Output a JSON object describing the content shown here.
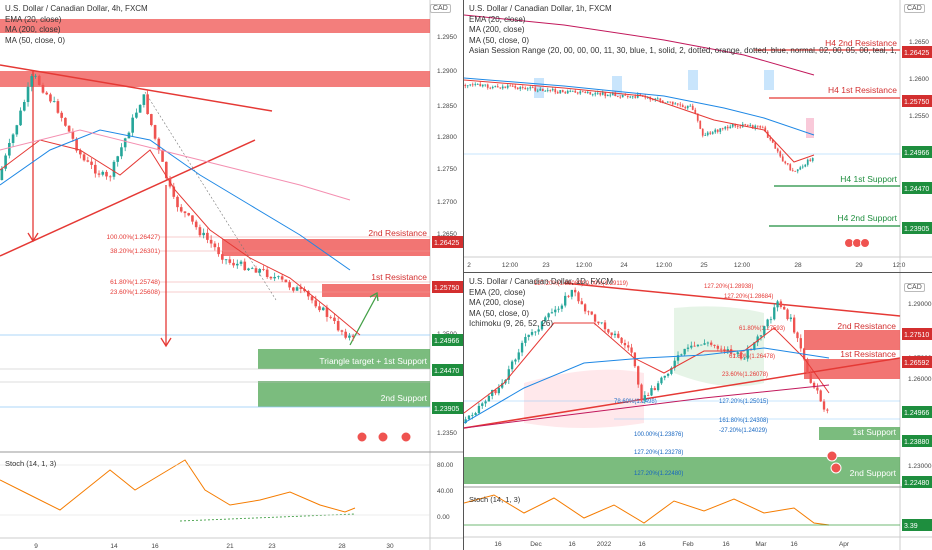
{
  "panels": [
    {
      "legend": [
        "U.S. Dollar / Canadian Dollar, 4h, FXCM",
        "EMA (20, close)",
        "MA (200, close)",
        "MA (50, close, 0)"
      ],
      "currency": "CAD",
      "stoch_label": "Stoch (14, 1, 3)",
      "stoch_ticks": [
        "80.00",
        "40.00",
        "0.00"
      ],
      "xticks": [
        "9",
        "14",
        "16",
        "21",
        "23",
        "28",
        "30"
      ],
      "yticks": [
        "1.2950",
        "1.2900",
        "1.2850",
        "1.2800",
        "1.2750",
        "1.2700",
        "1.2650",
        "1.2500",
        "1.2450",
        "1.2350"
      ],
      "price_tags": [
        {
          "text": "1.26425",
          "color": "#d32f2f"
        },
        {
          "text": "1.25750",
          "color": "#d32f2f"
        },
        {
          "text": "1.24966",
          "color": "#1e8e3e"
        },
        {
          "text": "1.24470",
          "color": "#1e8e3e"
        },
        {
          "text": "1.23905",
          "color": "#1e8e3e"
        }
      ],
      "zones": [
        "2nd Resistance",
        "1st Resistance",
        "Triangle target + 1st Support",
        "2nd Support"
      ],
      "fibs": [
        "100.00%(1.26427)",
        "38.20%(1.26301)",
        "61.80%(1.25748)",
        "23.60%(1.25608)"
      ]
    },
    {
      "legend": [
        "U.S. Dollar / Canadian Dollar, 1h, FXCM",
        "EMA (20, close)",
        "MA (200, close)",
        "MA (50, close, 0)",
        "Asian Session Range (20, 00, 00, 00, 11, 30, blue, 1, solid, 2, dotted, orange, dotted, blue, normal, 02, 00, 05, 00, teal, 1, solid, 2, dotted, teal, dotted,"
      ],
      "currency": "CAD",
      "xticks": [
        "2",
        "12:00",
        "23",
        "12:00",
        "24",
        "12:00",
        "25",
        "12:00",
        "28",
        "29",
        "12:0"
      ],
      "yticks": [
        "1.2650",
        "1.2600",
        "1.2550",
        "1.2500",
        "1.2450",
        "1.2400"
      ],
      "price_tags": [
        {
          "text": "1.26425",
          "color": "#d32f2f"
        },
        {
          "text": "1.25750",
          "color": "#d32f2f"
        },
        {
          "text": "1.24966",
          "color": "#1e8e3e"
        },
        {
          "text": "1.24470",
          "color": "#1e8e3e"
        },
        {
          "text": "1.23905",
          "color": "#1e8e3e"
        }
      ],
      "zones": [
        "H4 2nd Resistance",
        "H4 1st Resistance",
        "H4 1st Support",
        "H4 2nd Support"
      ]
    },
    {
      "legend": [
        "U.S. Dollar / Canadian Dollar, 1D, FXCM",
        "EMA (20, close)",
        "MA (200, close)",
        "MA (50, close, 0)",
        "Ichimoku (9, 26, 52, 26)"
      ],
      "currency": "CAD",
      "stoch_label": "Stoch (14, 1, 3)",
      "xticks": [
        "16",
        "Dec",
        "16",
        "2022",
        "16",
        "Feb",
        "16",
        "Mar",
        "16",
        "Apr"
      ],
      "yticks": [
        "1.29000",
        "1.28000",
        "1.27000",
        "1.26000",
        "1.25000",
        "1.23000"
      ],
      "price_tags": [
        {
          "text": "1.27510",
          "color": "#d32f2f"
        },
        {
          "text": "1.26592",
          "color": "#d32f2f"
        },
        {
          "text": "1.24966",
          "color": "#1e8e3e"
        },
        {
          "text": "1.23880",
          "color": "#1e8e3e"
        },
        {
          "text": "1.22480",
          "color": "#1e8e3e"
        },
        {
          "text": "3.39",
          "color": "#1e8e3e"
        }
      ],
      "zones": [
        "2nd Resistance",
        "1st Resistance",
        "1st Support",
        "2nd Support"
      ],
      "fibs": [
        "127.20%(1.29089)",
        "100.00%(1.29119)",
        "127.20%(1.28938)",
        "127.20%(1.28684)",
        "61.80%(1.27593)",
        "61.80%(1.26478)",
        "23.60%(1.26078)",
        "78.60%(1.2498)",
        "127.20%(1.25015)",
        "161.80%(1.24308)",
        "-27.20%(1.24029)",
        "100.00%(1.23876)",
        "127.20%(1.23278)",
        "127.20%(1.22480)"
      ]
    }
  ],
  "colors": {
    "resistance": "#ef5350",
    "support": "#43a047",
    "ema": "#e53935",
    "ma200": "#c2185b",
    "ma50": "#1e88e5",
    "stoch": "#f57c00"
  }
}
